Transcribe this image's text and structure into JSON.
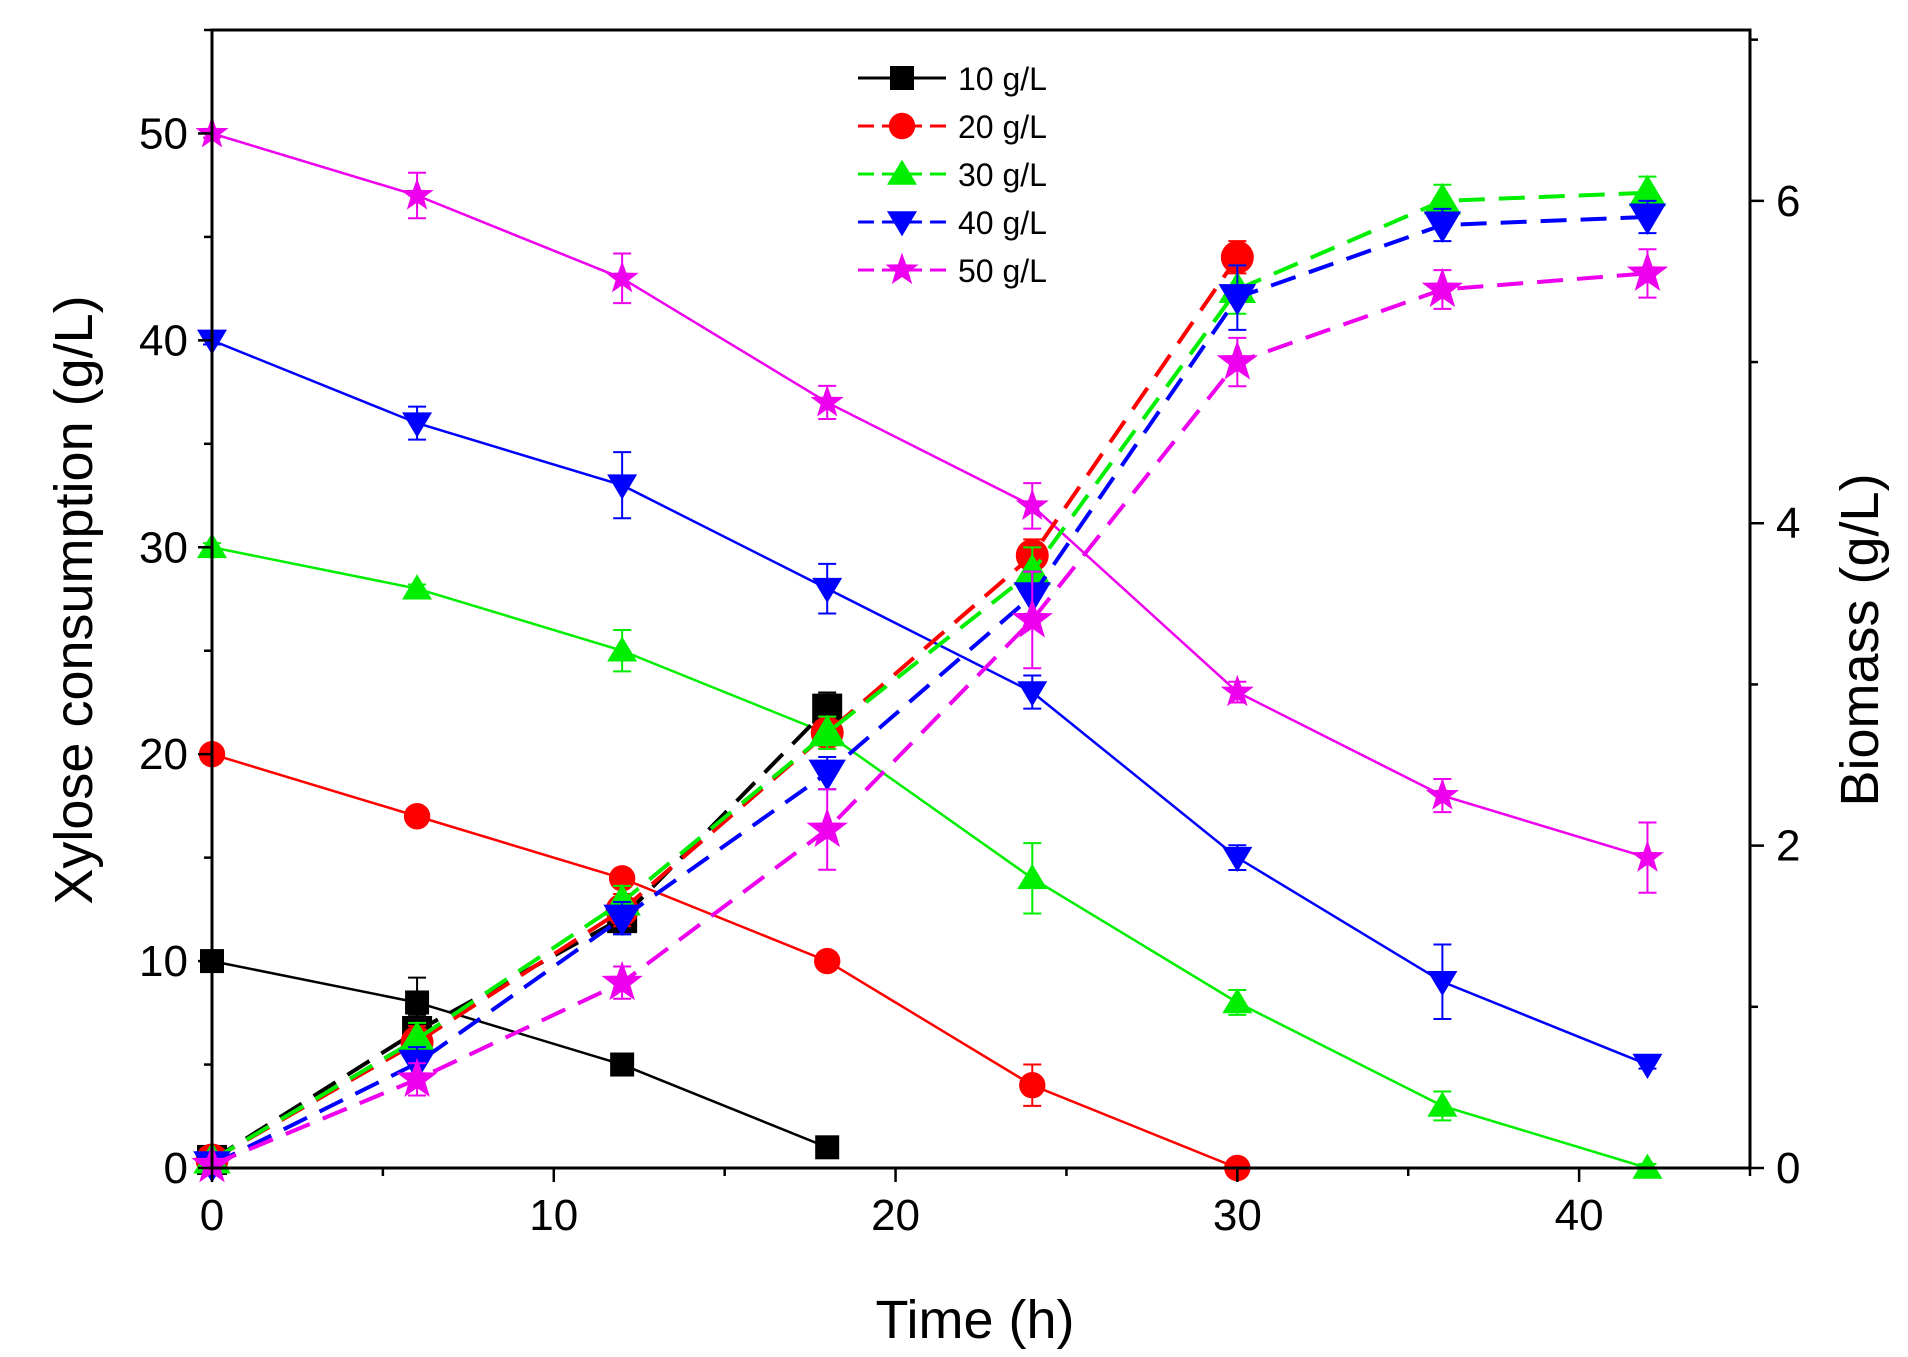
{
  "chart_data": {
    "type": "line",
    "xlabel": "Time (h)",
    "ylabel_left": "Xylose consumption (g/L)",
    "ylabel_right": "Biomass (g/L)",
    "xlim": [
      0,
      45
    ],
    "ylim_left": [
      0,
      55
    ],
    "ylim_right": [
      0,
      7.06
    ],
    "x_ticks": [
      0,
      10,
      20,
      30,
      40
    ],
    "y_ticks_left": [
      0,
      10,
      20,
      30,
      40,
      50
    ],
    "y_ticks_right": [
      0,
      2,
      4,
      6
    ],
    "legend_position": "top-center",
    "series": [
      {
        "name": "10 g/L",
        "color": "#000000",
        "marker": "square",
        "xylose": {
          "x": [
            0,
            6,
            12,
            18
          ],
          "y": [
            10,
            8,
            5,
            1
          ],
          "err": [
            0.2,
            1.2,
            0.3,
            0.3
          ]
        },
        "biomass": {
          "x": [
            0,
            6,
            12,
            18
          ],
          "y": [
            0.05,
            0.85,
            1.55,
            2.85
          ],
          "err": [
            0.03,
            0.1,
            0.1,
            0.1
          ]
        }
      },
      {
        "name": "20 g/L",
        "color": "#ff0000",
        "marker": "circle",
        "xylose": {
          "x": [
            0,
            6,
            12,
            18,
            24,
            30
          ],
          "y": [
            20,
            17,
            14,
            10,
            4,
            0
          ],
          "err": [
            0.2,
            0.2,
            0.3,
            0.2,
            1.0,
            0.2
          ]
        },
        "biomass": {
          "x": [
            0,
            6,
            12,
            18,
            24,
            30
          ],
          "y": [
            0.05,
            0.78,
            1.6,
            2.7,
            3.8,
            5.65
          ],
          "err": [
            0.03,
            0.1,
            0.1,
            0.1,
            0.1,
            0.1
          ]
        }
      },
      {
        "name": "30 g/L",
        "color": "#00ee00",
        "marker": "triangle-up",
        "xylose": {
          "x": [
            0,
            6,
            12,
            18,
            24,
            30,
            36,
            42
          ],
          "y": [
            30,
            28,
            25,
            21,
            14,
            8,
            3,
            0
          ],
          "err": [
            0.2,
            0.2,
            1.0,
            0.5,
            1.7,
            0.6,
            0.7,
            0.2
          ]
        },
        "biomass": {
          "x": [
            0,
            6,
            12,
            18,
            24,
            30,
            36,
            42
          ],
          "y": [
            0.05,
            0.8,
            1.65,
            2.7,
            3.7,
            5.45,
            6.0,
            6.05
          ],
          "err": [
            0.03,
            0.1,
            0.1,
            0.1,
            0.15,
            0.15,
            0.1,
            0.1
          ]
        }
      },
      {
        "name": "40 g/L",
        "color": "#0000ff",
        "marker": "triangle-down",
        "xylose": {
          "x": [
            0,
            6,
            12,
            18,
            24,
            30,
            36,
            42
          ],
          "y": [
            40,
            36,
            33,
            28,
            23,
            15,
            9,
            5
          ],
          "err": [
            0.2,
            0.8,
            1.6,
            1.2,
            0.8,
            0.6,
            1.8,
            0.2
          ]
        },
        "biomass": {
          "x": [
            0,
            6,
            12,
            18,
            24,
            30,
            36,
            42
          ],
          "y": [
            0.02,
            0.65,
            1.55,
            2.45,
            3.55,
            5.4,
            5.85,
            5.9
          ],
          "err": [
            0.03,
            0.1,
            0.1,
            0.1,
            0.15,
            0.2,
            0.1,
            0.1
          ]
        }
      },
      {
        "name": "50 g/L",
        "color": "#ee00ee",
        "marker": "star",
        "xylose": {
          "x": [
            0,
            6,
            12,
            18,
            24,
            30,
            36,
            42
          ],
          "y": [
            50,
            47,
            43,
            37,
            32,
            23,
            18,
            15
          ],
          "err": [
            0.2,
            1.1,
            1.2,
            0.8,
            1.1,
            0.5,
            0.8,
            1.7
          ]
        },
        "biomass": {
          "x": [
            0,
            6,
            12,
            18,
            24,
            30,
            36,
            42
          ],
          "y": [
            0.02,
            0.55,
            1.15,
            2.1,
            3.4,
            5.0,
            5.45,
            5.55
          ],
          "err": [
            0.03,
            0.1,
            0.1,
            0.25,
            0.3,
            0.15,
            0.12,
            0.15
          ]
        }
      }
    ]
  }
}
